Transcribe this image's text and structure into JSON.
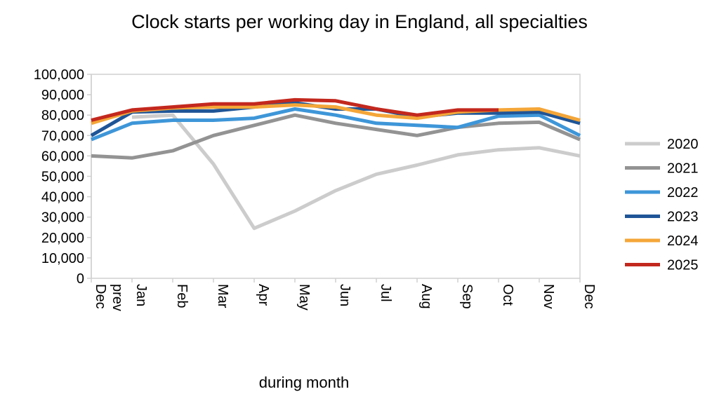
{
  "chart_data": {
    "type": "line",
    "title": "Clock starts per working day in England, all specialties",
    "xlabel": "during month",
    "ylabel": "",
    "categories": [
      "Dec prev",
      "Jan",
      "Feb",
      "Mar",
      "Apr",
      "May",
      "Jun",
      "Jul",
      "Aug",
      "Sep",
      "Oct",
      "Nov",
      "Dec"
    ],
    "ylim": [
      0,
      100000
    ],
    "yticks": [
      0,
      10000,
      20000,
      30000,
      40000,
      50000,
      60000,
      70000,
      80000,
      90000,
      100000
    ],
    "ytick_labels": [
      "0",
      "10,000",
      "20,000",
      "30,000",
      "40,000",
      "50,000",
      "60,000",
      "70,000",
      "80,000",
      "90,000",
      "100,000"
    ],
    "grid": false,
    "legend_position": "right",
    "series": [
      {
        "name": "2020",
        "color": "#cccccc",
        "values": [
          null,
          79000,
          80000,
          56000,
          24500,
          33000,
          43000,
          51000,
          55500,
          60500,
          63000,
          64000,
          60000
        ]
      },
      {
        "name": "2021",
        "color": "#939393",
        "values": [
          60000,
          59000,
          62500,
          70000,
          75000,
          80000,
          76000,
          73000,
          70000,
          74000,
          76000,
          76500,
          68000
        ]
      },
      {
        "name": "2022",
        "color": "#3e96d8",
        "values": [
          68000,
          76000,
          77500,
          77500,
          78500,
          83000,
          80000,
          76000,
          75000,
          74000,
          79500,
          80000,
          70000
        ]
      },
      {
        "name": "2023",
        "color": "#1f5597",
        "values": [
          70000,
          81500,
          82000,
          82000,
          84000,
          86000,
          83000,
          83000,
          79000,
          81000,
          81000,
          81500,
          76000
        ]
      },
      {
        "name": "2024",
        "color": "#f4a638",
        "values": [
          76000,
          82000,
          83500,
          84000,
          84000,
          85000,
          84000,
          80000,
          78500,
          81500,
          82500,
          83000,
          77500
        ]
      },
      {
        "name": "2025",
        "color": "#c3281e",
        "values": [
          77500,
          82500,
          84000,
          85500,
          85500,
          87500,
          87000,
          83000,
          80000,
          82500,
          82500,
          null,
          null
        ]
      }
    ]
  }
}
